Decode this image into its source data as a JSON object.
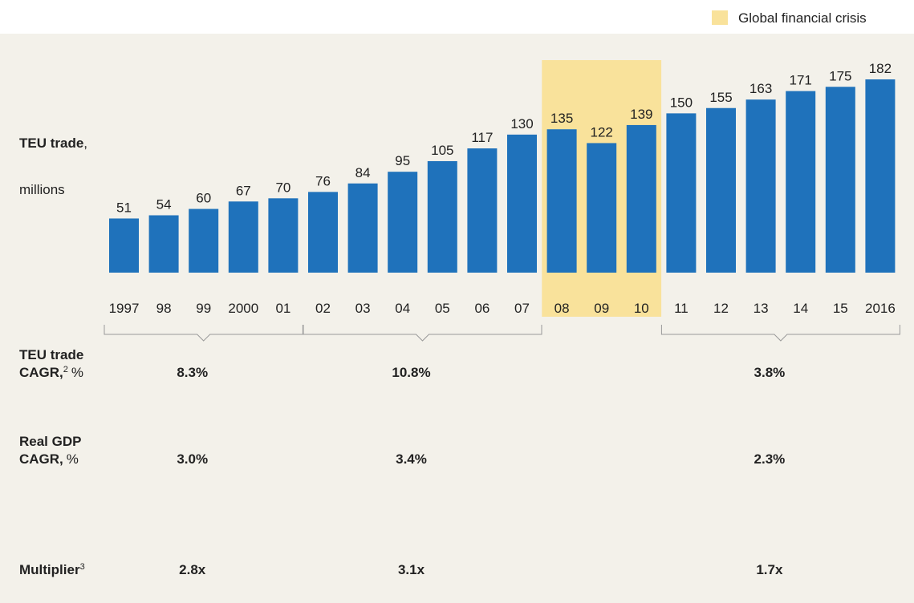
{
  "chart_data": {
    "type": "bar",
    "y_label": [
      "TEU trade",
      ",",
      "millions"
    ],
    "categories": [
      "1997",
      "98",
      "99",
      "2000",
      "01",
      "02",
      "03",
      "04",
      "05",
      "06",
      "07",
      "08",
      "09",
      "10",
      "11",
      "12",
      "13",
      "14",
      "15",
      "2016"
    ],
    "values": [
      51,
      54,
      60,
      67,
      70,
      76,
      84,
      95,
      105,
      117,
      130,
      135,
      122,
      139,
      150,
      155,
      163,
      171,
      175,
      182
    ],
    "color": "#1f72bb",
    "highlight": {
      "label": "Global financial crisis",
      "from": "08",
      "to": "10",
      "color": "#f9e29b"
    },
    "brackets": [
      [
        "1997",
        "01"
      ],
      [
        "02",
        "07"
      ],
      [
        "11",
        "2016"
      ]
    ],
    "metrics": [
      {
        "label": [
          "TEU trade",
          "CAGR,"
        ],
        "footnote": "2",
        "unit": "%",
        "color": "#8b9a3a",
        "values": [
          8.3,
          10.8,
          3.8
        ],
        "value_labels": [
          "8.3%",
          "10.8%",
          "3.8%"
        ]
      },
      {
        "label": [
          "Real GDP",
          "CAGR,"
        ],
        "unit": "%",
        "color": "#c0282f",
        "values": [
          3.0,
          3.4,
          2.3
        ],
        "value_labels": [
          "3.0%",
          "3.4%",
          "2.3%"
        ]
      },
      {
        "label": [
          "Multiplier"
        ],
        "footnote": "3",
        "color": "#5b2a78",
        "values": [
          2.8,
          3.1,
          1.7
        ],
        "value_labels": [
          "2.8x",
          "3.1x",
          "1.7x"
        ]
      }
    ]
  }
}
